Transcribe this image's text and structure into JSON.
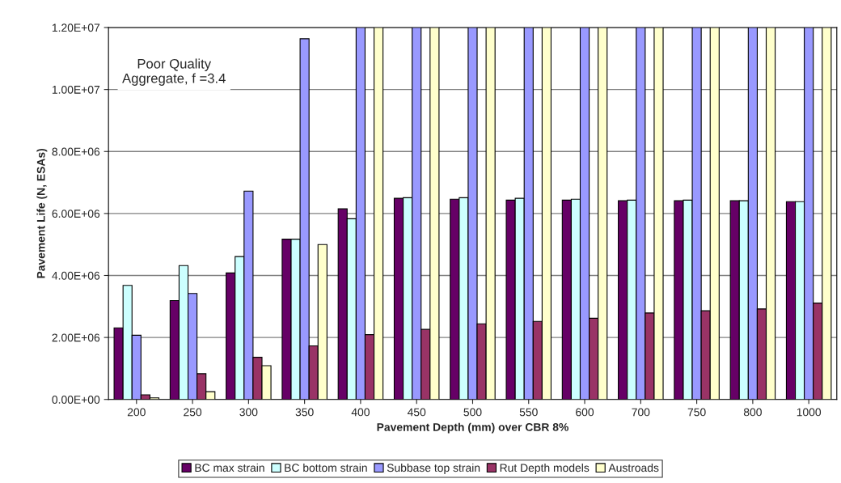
{
  "chart_data": {
    "type": "bar",
    "xlabel": "Pavement Depth (mm) over CBR 8%",
    "ylabel": "Pavement Life (N, ESAs)",
    "categories": [
      "200",
      "250",
      "300",
      "350",
      "400",
      "450",
      "500",
      "550",
      "600",
      "700",
      "750",
      "800",
      "1000"
    ],
    "series": [
      {
        "name": "BC max strain",
        "color": "#660066",
        "values": [
          2310000.0,
          3190000.0,
          4080000.0,
          5170000.0,
          6150000.0,
          6490000.0,
          6460000.0,
          6430000.0,
          6430000.0,
          6410000.0,
          6410000.0,
          6410000.0,
          6380000.0
        ]
      },
      {
        "name": "BC bottom strain",
        "color": "#ccffff",
        "values": [
          3680000.0,
          4320000.0,
          4610000.0,
          5170000.0,
          5830000.0,
          6510000.0,
          6510000.0,
          6490000.0,
          6460000.0,
          6430000.0,
          6430000.0,
          6410000.0,
          6380000.0
        ]
      },
      {
        "name": "Subbase top strain",
        "color": "#9999ff",
        "values": [
          2070000.0,
          3420000.0,
          6720000.0,
          11640000.0,
          12000000.0,
          12000000.0,
          12000000.0,
          12000000.0,
          12000000.0,
          12000000.0,
          12000000.0,
          12000000.0,
          12000000.0
        ]
      },
      {
        "name": "Rut Depth models",
        "color": "#993366",
        "values": [
          150000.0,
          830000.0,
          1360000.0,
          1730000.0,
          2090000.0,
          2260000.0,
          2440000.0,
          2520000.0,
          2620000.0,
          2790000.0,
          2860000.0,
          2920000.0,
          3110000.0
        ]
      },
      {
        "name": "Austroads",
        "color": "#ffffcc",
        "values": [
          50000.0,
          250000.0,
          1090000.0,
          5000000.0,
          12000000.0,
          12000000.0,
          12000000.0,
          12000000.0,
          12000000.0,
          12000000.0,
          12000000.0,
          12000000.0,
          12000000.0
        ]
      }
    ],
    "ylim": [
      0,
      12000000.0
    ],
    "yticks": [
      {
        "value": 0,
        "label": "0.00E+00"
      },
      {
        "value": 2000000.0,
        "label": "2.00E+06"
      },
      {
        "value": 4000000.0,
        "label": "4.00E+06"
      },
      {
        "value": 6000000.0,
        "label": "6.00E+06"
      },
      {
        "value": 8000000.0,
        "label": "8.00E+06"
      },
      {
        "value": 10000000.0,
        "label": "1.00E+07"
      },
      {
        "value": 12000000.0,
        "label": "1.20E+07"
      }
    ],
    "grid": "y",
    "legend": "bottom",
    "annotations": [
      "Poor Quality\nAggregate, f =3.4"
    ]
  }
}
